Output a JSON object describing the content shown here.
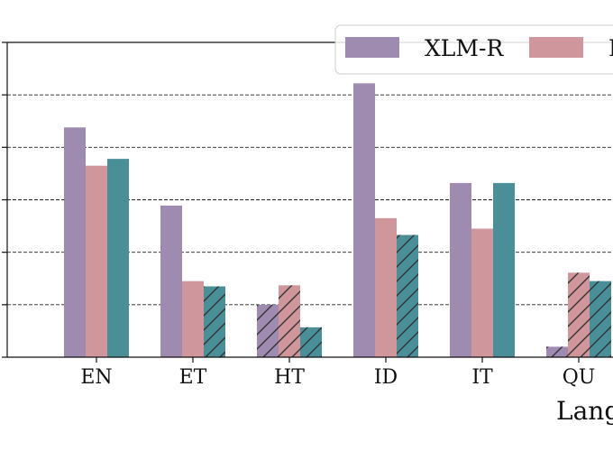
{
  "chart_data": {
    "type": "bar",
    "title": "",
    "xlabel": "Lang",
    "ylabel": "",
    "categories": [
      "EN",
      "ET",
      "HT",
      "ID",
      "IT",
      "QU"
    ],
    "ylim": [
      0,
      6
    ],
    "grid": {
      "axis": "y",
      "style": "dashed"
    },
    "legend": {
      "placement": "top-right"
    },
    "series": [
      {
        "name": "XLM-R",
        "color": "#a08bb0",
        "values": [
          4.38,
          2.89,
          1.0,
          5.22,
          3.32,
          0.2
        ],
        "hatched": [
          false,
          false,
          true,
          false,
          false,
          true
        ]
      },
      {
        "name": "M",
        "color": "#cf969c",
        "values": [
          3.65,
          1.45,
          1.37,
          2.65,
          2.45,
          1.61
        ],
        "hatched": [
          false,
          false,
          true,
          false,
          false,
          true
        ]
      },
      {
        "name": "",
        "color": "#4a8e98",
        "values": [
          3.78,
          1.35,
          0.57,
          2.33,
          3.32,
          1.45
        ],
        "hatched": [
          false,
          true,
          true,
          true,
          false,
          true
        ]
      }
    ]
  }
}
